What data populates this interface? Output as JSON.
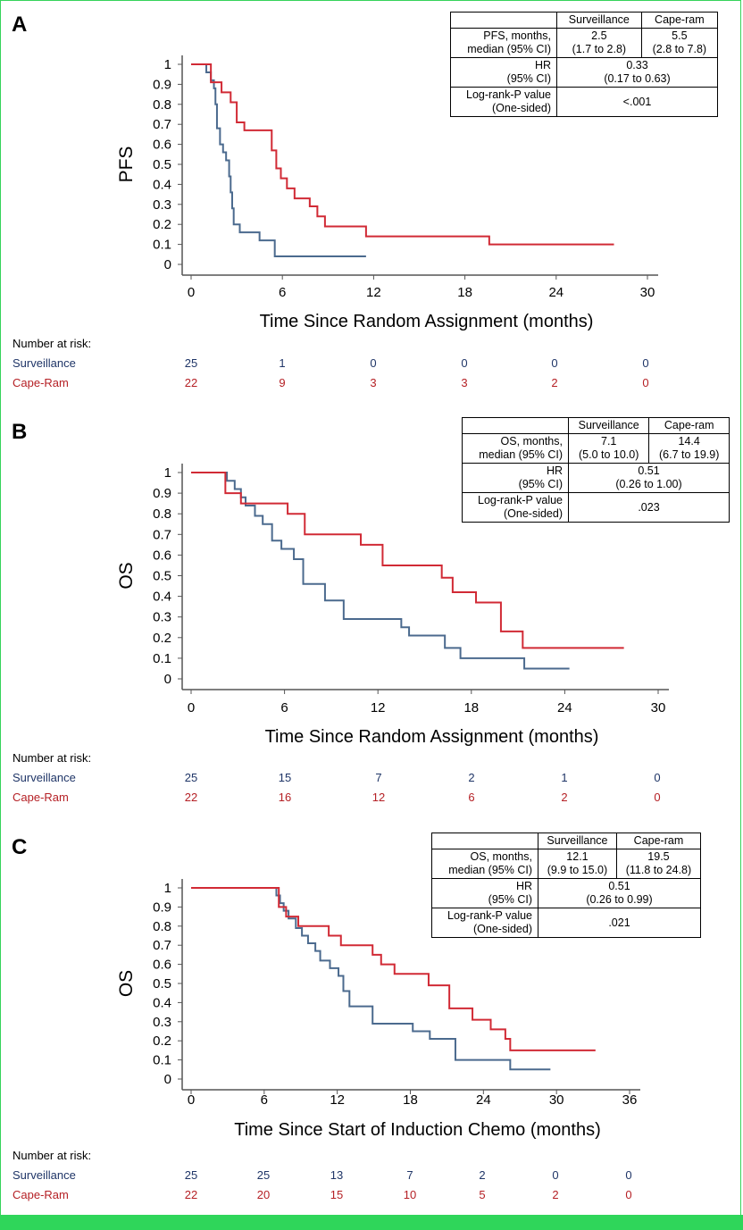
{
  "colors": {
    "surveillance": "#4b6a8e",
    "cape_ram": "#d12a35",
    "surv_text": "#1f3567",
    "cape_text": "#b52025",
    "frame": "#2fd65a"
  },
  "panels": [
    {
      "label": "A",
      "table": {
        "col1": "Surveillance",
        "col2": "Cape-ram",
        "r1_head": "PFS, months,\nmedian (95% CI)",
        "r1_c1": "2.5\n(1.7 to 2.8)",
        "r1_c2": "5.5\n(2.8 to 7.8)",
        "r2_head": "HR\n(95% CI)",
        "r2_val": "0.33\n(0.17 to 0.63)",
        "r3_head": "Log-rank-P value\n(One-sided)",
        "r3_val": "<.001"
      },
      "risk": {
        "title": "Number at risk:",
        "surv_label": "Surveillance",
        "cape_label": "Cape-Ram",
        "surv": [
          "25",
          "1",
          "0",
          "0",
          "0",
          "0"
        ],
        "cape": [
          "22",
          "9",
          "3",
          "3",
          "2",
          "0"
        ]
      }
    },
    {
      "label": "B",
      "table": {
        "col1": "Surveillance",
        "col2": "Cape-ram",
        "r1_head": "OS, months,\nmedian (95% CI)",
        "r1_c1": "7.1\n(5.0 to 10.0)",
        "r1_c2": "14.4\n(6.7 to 19.9)",
        "r2_head": "HR\n(95% CI)",
        "r2_val": "0.51\n(0.26 to 1.00)",
        "r3_head": "Log-rank-P value\n(One-sided)",
        "r3_val": ".023"
      },
      "risk": {
        "title": "Number at risk:",
        "surv_label": "Surveillance",
        "cape_label": "Cape-Ram",
        "surv": [
          "25",
          "15",
          "7",
          "2",
          "1",
          "0"
        ],
        "cape": [
          "22",
          "16",
          "12",
          "6",
          "2",
          "0"
        ]
      }
    },
    {
      "label": "C",
      "table": {
        "col1": "Surveillance",
        "col2": "Cape-ram",
        "r1_head": "OS, months,\nmedian (95% CI)",
        "r1_c1": "12.1\n(9.9 to 15.0)",
        "r1_c2": "19.5\n(11.8 to 24.8)",
        "r2_head": "HR\n(95% CI)",
        "r2_val": "0.51\n(0.26 to 0.99)",
        "r3_head": "Log-rank-P value\n(One-sided)",
        "r3_val": ".021"
      },
      "risk": {
        "title": "Number at risk:",
        "surv_label": "Surveillance",
        "cape_label": "Cape-Ram",
        "surv": [
          "25",
          "25",
          "13",
          "7",
          "2",
          "0",
          "0"
        ],
        "cape": [
          "22",
          "20",
          "15",
          "10",
          "5",
          "2",
          "0"
        ]
      }
    }
  ],
  "chart_data": [
    {
      "type": "line",
      "title": "",
      "xlabel": "Time Since Random Assignment (months)",
      "ylabel": "PFS",
      "xlim": [
        0,
        30
      ],
      "ylim": [
        0,
        1
      ],
      "xticks": [
        "0",
        "6",
        "12",
        "18",
        "24",
        "30"
      ],
      "yticks": [
        "0",
        "0.1",
        "0.2",
        "0.3",
        "0.4",
        "0.5",
        "0.6",
        "0.7",
        "0.8",
        "0.9",
        "1"
      ],
      "series": [
        {
          "name": "Surveillance",
          "x": [
            0,
            1,
            1.3,
            1.5,
            1.6,
            1.7,
            1.9,
            2.1,
            2.3,
            2.5,
            2.6,
            2.7,
            2.8,
            3.2,
            4.5,
            5.5,
            11.5
          ],
          "y": [
            1,
            0.96,
            0.92,
            0.88,
            0.8,
            0.68,
            0.6,
            0.56,
            0.52,
            0.44,
            0.36,
            0.28,
            0.2,
            0.16,
            0.12,
            0.04,
            0.04
          ]
        },
        {
          "name": "Cape-Ram",
          "x": [
            0,
            1.3,
            2,
            2.6,
            3,
            3.5,
            5.3,
            5.6,
            5.9,
            6.3,
            6.8,
            7.8,
            8.3,
            8.8,
            11.5,
            19.6,
            27.8
          ],
          "y": [
            1,
            0.91,
            0.86,
            0.81,
            0.71,
            0.67,
            0.57,
            0.48,
            0.43,
            0.38,
            0.33,
            0.29,
            0.24,
            0.19,
            0.14,
            0.1,
            0.1
          ]
        }
      ]
    },
    {
      "type": "line",
      "title": "",
      "xlabel": "Time Since Random Assignment (months)",
      "ylabel": "OS",
      "xlim": [
        0,
        30
      ],
      "ylim": [
        0,
        1
      ],
      "xticks": [
        "0",
        "6",
        "12",
        "18",
        "24",
        "30"
      ],
      "yticks": [
        "0",
        "0.1",
        "0.2",
        "0.3",
        "0.4",
        "0.5",
        "0.6",
        "0.7",
        "0.8",
        "0.9",
        "1"
      ],
      "series": [
        {
          "name": "Surveillance",
          "x": [
            0,
            2.3,
            2.8,
            3.2,
            3.5,
            4.1,
            4.6,
            5.2,
            5.8,
            6.6,
            7.2,
            8.6,
            9.8,
            13.5,
            14,
            16.3,
            17.3,
            21.4,
            24.3
          ],
          "y": [
            1,
            0.96,
            0.92,
            0.88,
            0.84,
            0.79,
            0.75,
            0.67,
            0.63,
            0.58,
            0.46,
            0.38,
            0.29,
            0.25,
            0.21,
            0.15,
            0.1,
            0.05,
            0.05
          ]
        },
        {
          "name": "Cape-Ram",
          "x": [
            0,
            2.2,
            3.2,
            6.2,
            7.3,
            10.9,
            12.3,
            16.1,
            16.8,
            18.3,
            19.9,
            21.3,
            27.8
          ],
          "y": [
            1,
            0.9,
            0.85,
            0.8,
            0.7,
            0.65,
            0.55,
            0.49,
            0.42,
            0.37,
            0.23,
            0.15,
            0.15
          ]
        }
      ]
    },
    {
      "type": "line",
      "title": "",
      "xlabel": "Time Since Start of Induction Chemo (months)",
      "ylabel": "OS",
      "xlim": [
        0,
        36
      ],
      "ylim": [
        0,
        1
      ],
      "xticks": [
        "0",
        "6",
        "12",
        "18",
        "24",
        "30",
        "36"
      ],
      "yticks": [
        "0",
        "0.1",
        "0.2",
        "0.3",
        "0.4",
        "0.5",
        "0.6",
        "0.7",
        "0.8",
        "0.9",
        "1"
      ],
      "series": [
        {
          "name": "Surveillance",
          "x": [
            0,
            7,
            7.3,
            7.6,
            8,
            8.6,
            9.1,
            9.6,
            10.2,
            10.6,
            11.4,
            12.1,
            12.5,
            13,
            14.9,
            18.2,
            19.6,
            21.7,
            26.2,
            29.5
          ],
          "y": [
            1,
            0.96,
            0.92,
            0.88,
            0.84,
            0.79,
            0.75,
            0.71,
            0.67,
            0.62,
            0.58,
            0.54,
            0.46,
            0.38,
            0.29,
            0.25,
            0.21,
            0.1,
            0.05,
            0.05
          ]
        },
        {
          "name": "Cape-Ram",
          "x": [
            0,
            7.2,
            7.8,
            8.8,
            11.3,
            12.3,
            14.9,
            15.6,
            16.7,
            19.5,
            21.2,
            23.1,
            24.6,
            25.8,
            26.2,
            33.2
          ],
          "y": [
            1,
            0.9,
            0.85,
            0.8,
            0.75,
            0.7,
            0.65,
            0.6,
            0.55,
            0.49,
            0.37,
            0.31,
            0.26,
            0.21,
            0.15,
            0.15
          ]
        }
      ]
    }
  ]
}
